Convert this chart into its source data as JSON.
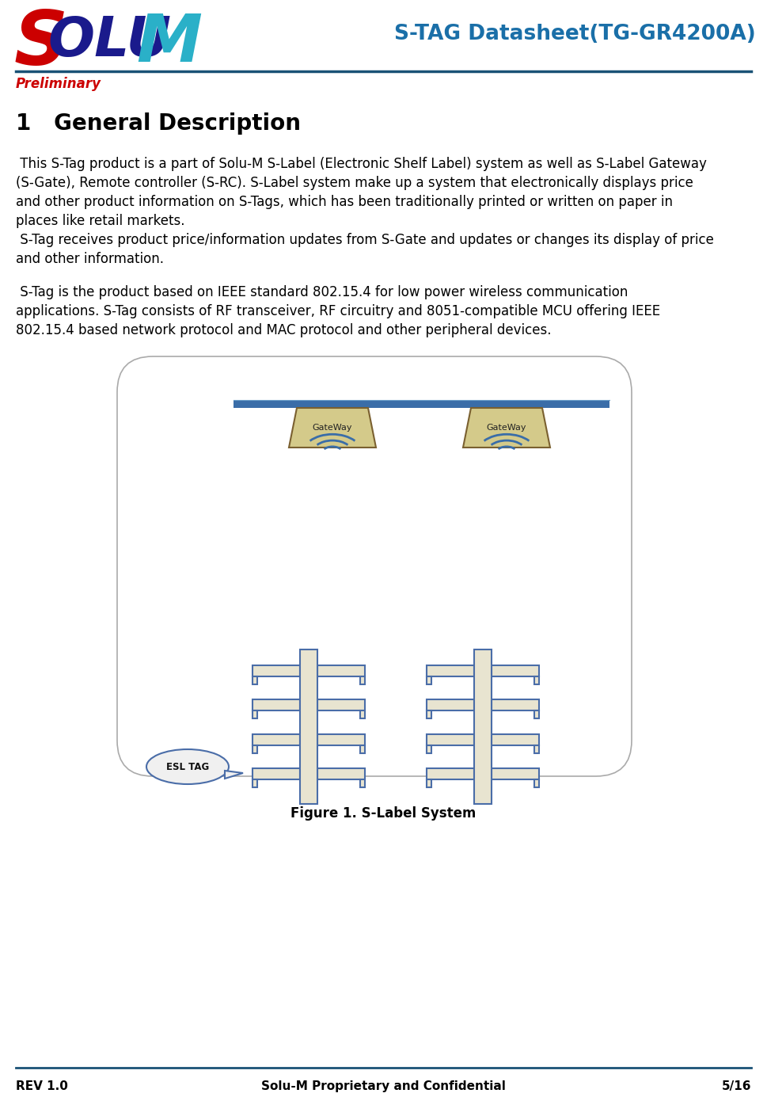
{
  "title_right": "S-TAG Datasheet(TG-GR4200A)",
  "preliminary_text": "Preliminary",
  "section_title": "1   General Description",
  "para1_lines": [
    " This S-Tag product is a part of Solu-M S-Label (Electronic Shelf Label) system as well as S-Label Gateway",
    "(S-Gate), Remote controller (S-RC). S-Label system make up a system that electronically displays price",
    "and other product information on S-Tags, which has been traditionally printed or written on paper in",
    "places like retail markets.",
    " S-Tag receives product price/information updates from S-Gate and updates or changes its display of price",
    "and other information."
  ],
  "para2_lines": [
    " S-Tag is the product based on IEEE standard 802.15.4 for low power wireless communication",
    "applications. S-Tag consists of RF transceiver, RF circuitry and 8051-compatible MCU offering IEEE",
    "802.15.4 based network protocol and MAC protocol and other peripheral devices."
  ],
  "figure_caption": "Figure 1. S-Label System",
  "footer_left": "REV 1.0",
  "footer_center": "Solu-M Proprietary and Confidential",
  "footer_right": "5/16",
  "header_line_color": "#1a5276",
  "footer_line_color": "#1a5276",
  "title_color": "#1a6fa8",
  "preliminary_color": "#cc0000",
  "body_color": "#000000",
  "bg_color": "#ffffff",
  "logo_s_color": "#cc0000",
  "logo_olu_color": "#1a1a8c",
  "logo_M_color": "#2ab0c8",
  "box_fill": "#ffffff",
  "box_edge": "#aaaaaa",
  "shelf_bar_color": "#3a6da8",
  "gateway_fill": "#d4ca8a",
  "gateway_edge": "#7a6030",
  "signal_color": "#3a6da8",
  "pole_fill": "#e8e4d0",
  "pole_edge": "#4a6da8",
  "bracket_fill": "#e8e4d0",
  "bracket_edge": "#4a6da8",
  "esl_fill": "#f0f0f0",
  "esl_edge": "#4a6da8"
}
